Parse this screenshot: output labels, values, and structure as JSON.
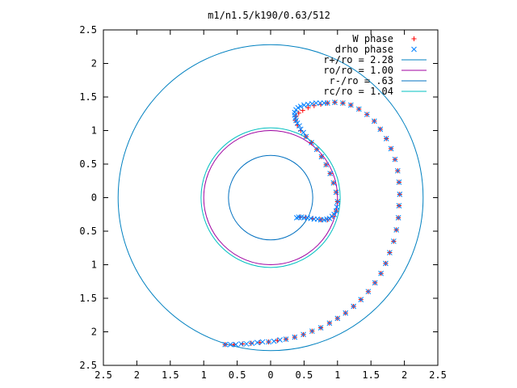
{
  "chart_data": {
    "type": "scatter",
    "title": "m1/n1.5/k190/0.63/512",
    "xlabel": "",
    "ylabel": "",
    "xlim": [
      -2.5,
      2.5
    ],
    "ylim": [
      -2.5,
      2.5
    ],
    "x_ticks": [
      -2.5,
      -2,
      -1.5,
      -1,
      -0.5,
      0,
      0.5,
      1,
      1.5,
      2,
      2.5
    ],
    "y_ticks": [
      -2.5,
      -2,
      -1.5,
      -1,
      -0.5,
      0,
      0.5,
      1,
      1.5,
      2,
      2.5
    ],
    "x_tick_labels": [
      "2.5",
      "2",
      "1.5",
      "1",
      "0.5",
      "0",
      "0.5",
      "1",
      "1.5",
      "2",
      "2.5"
    ],
    "y_tick_labels": [
      "2.5",
      "2",
      "1.5",
      "1",
      "0.5",
      "0",
      "0.5",
      "1",
      "1.5",
      "2",
      "2.5"
    ],
    "grid": false,
    "legend_position": "top-right",
    "series": [
      {
        "name": "W phase",
        "kind": "points",
        "marker": "plus",
        "color": "#ff0000",
        "points": [
          [
            -0.68,
            -2.19
          ],
          [
            -0.55,
            -2.19
          ],
          [
            -0.42,
            -2.18
          ],
          [
            -0.29,
            -2.17
          ],
          [
            -0.16,
            -2.16
          ],
          [
            -0.03,
            -2.15
          ],
          [
            0.1,
            -2.13
          ],
          [
            0.23,
            -2.11
          ],
          [
            0.36,
            -2.08
          ],
          [
            0.49,
            -2.04
          ],
          [
            0.62,
            -1.99
          ],
          [
            0.75,
            -1.94
          ],
          [
            0.88,
            -1.87
          ],
          [
            1.0,
            -1.8
          ],
          [
            1.12,
            -1.72
          ],
          [
            1.24,
            -1.62
          ],
          [
            1.35,
            -1.52
          ],
          [
            1.46,
            -1.4
          ],
          [
            1.56,
            -1.27
          ],
          [
            1.65,
            -1.13
          ],
          [
            1.72,
            -0.98
          ],
          [
            1.78,
            -0.82
          ],
          [
            1.84,
            -0.65
          ],
          [
            1.88,
            -0.48
          ],
          [
            1.91,
            -0.3
          ],
          [
            1.92,
            -0.12
          ],
          [
            1.93,
            0.05
          ],
          [
            1.92,
            0.23
          ],
          [
            1.9,
            0.4
          ],
          [
            1.86,
            0.57
          ],
          [
            1.8,
            0.73
          ],
          [
            1.73,
            0.88
          ],
          [
            1.64,
            1.02
          ],
          [
            1.55,
            1.14
          ],
          [
            1.44,
            1.24
          ],
          [
            1.32,
            1.32
          ],
          [
            1.2,
            1.38
          ],
          [
            1.08,
            1.41
          ],
          [
            0.96,
            1.42
          ],
          [
            0.85,
            1.41
          ],
          [
            0.75,
            1.39
          ],
          [
            0.65,
            1.37
          ],
          [
            0.56,
            1.34
          ],
          [
            0.48,
            1.3
          ],
          [
            0.42,
            1.26
          ],
          [
            0.38,
            1.21
          ],
          [
            0.37,
            1.15
          ],
          [
            0.4,
            1.08
          ],
          [
            0.45,
            1.0
          ],
          [
            0.53,
            0.91
          ],
          [
            0.61,
            0.82
          ],
          [
            0.69,
            0.72
          ],
          [
            0.76,
            0.61
          ],
          [
            0.83,
            0.49
          ],
          [
            0.89,
            0.36
          ],
          [
            0.94,
            0.22
          ],
          [
            0.98,
            0.08
          ],
          [
            1.0,
            -0.06
          ],
          [
            0.98,
            -0.2
          ],
          [
            0.93,
            -0.28
          ],
          [
            0.85,
            -0.33
          ],
          [
            0.75,
            -0.33
          ],
          [
            0.63,
            -0.31
          ],
          [
            0.52,
            -0.29
          ],
          [
            0.44,
            -0.29
          ]
        ]
      },
      {
        "name": "drho phase",
        "kind": "points",
        "marker": "cross",
        "color": "#0080ff",
        "points": [
          [
            -0.68,
            -2.19
          ],
          [
            -0.6,
            -2.19
          ],
          [
            -0.52,
            -2.19
          ],
          [
            -0.44,
            -2.18
          ],
          [
            -0.36,
            -2.18
          ],
          [
            -0.28,
            -2.17
          ],
          [
            -0.2,
            -2.16
          ],
          [
            -0.12,
            -2.15
          ],
          [
            -0.03,
            -2.15
          ],
          [
            0.05,
            -2.14
          ],
          [
            0.14,
            -2.12
          ],
          [
            0.23,
            -2.11
          ],
          [
            0.36,
            -2.08
          ],
          [
            0.49,
            -2.04
          ],
          [
            0.62,
            -1.99
          ],
          [
            0.75,
            -1.94
          ],
          [
            0.88,
            -1.87
          ],
          [
            1.0,
            -1.8
          ],
          [
            1.12,
            -1.72
          ],
          [
            1.24,
            -1.62
          ],
          [
            1.35,
            -1.52
          ],
          [
            1.46,
            -1.4
          ],
          [
            1.56,
            -1.27
          ],
          [
            1.65,
            -1.13
          ],
          [
            1.72,
            -0.98
          ],
          [
            1.78,
            -0.82
          ],
          [
            1.84,
            -0.65
          ],
          [
            1.88,
            -0.48
          ],
          [
            1.91,
            -0.3
          ],
          [
            1.92,
            -0.12
          ],
          [
            1.93,
            0.05
          ],
          [
            1.92,
            0.23
          ],
          [
            1.9,
            0.4
          ],
          [
            1.86,
            0.57
          ],
          [
            1.8,
            0.73
          ],
          [
            1.73,
            0.88
          ],
          [
            1.64,
            1.02
          ],
          [
            1.55,
            1.14
          ],
          [
            1.44,
            1.24
          ],
          [
            1.32,
            1.32
          ],
          [
            1.2,
            1.38
          ],
          [
            1.08,
            1.41
          ],
          [
            0.96,
            1.42
          ],
          [
            0.85,
            1.41
          ],
          [
            0.8,
            1.41
          ],
          [
            0.74,
            1.41
          ],
          [
            0.68,
            1.41
          ],
          [
            0.62,
            1.4
          ],
          [
            0.56,
            1.39
          ],
          [
            0.5,
            1.38
          ],
          [
            0.45,
            1.36
          ],
          [
            0.41,
            1.34
          ],
          [
            0.38,
            1.31
          ],
          [
            0.36,
            1.27
          ],
          [
            0.36,
            1.23
          ],
          [
            0.37,
            1.19
          ],
          [
            0.38,
            1.15
          ],
          [
            0.4,
            1.11
          ],
          [
            0.43,
            1.07
          ],
          [
            0.45,
            1.02
          ],
          [
            0.49,
            0.97
          ],
          [
            0.53,
            0.91
          ],
          [
            0.61,
            0.82
          ],
          [
            0.69,
            0.72
          ],
          [
            0.76,
            0.61
          ],
          [
            0.83,
            0.49
          ],
          [
            0.89,
            0.36
          ],
          [
            0.94,
            0.22
          ],
          [
            0.98,
            0.08
          ],
          [
            1.0,
            -0.06
          ],
          [
            0.99,
            -0.14
          ],
          [
            0.98,
            -0.2
          ],
          [
            0.95,
            -0.25
          ],
          [
            0.92,
            -0.28
          ],
          [
            0.88,
            -0.31
          ],
          [
            0.84,
            -0.32
          ],
          [
            0.8,
            -0.33
          ],
          [
            0.75,
            -0.33
          ],
          [
            0.7,
            -0.32
          ],
          [
            0.65,
            -0.32
          ],
          [
            0.6,
            -0.31
          ],
          [
            0.55,
            -0.3
          ],
          [
            0.5,
            -0.3
          ],
          [
            0.46,
            -0.29
          ],
          [
            0.42,
            -0.29
          ],
          [
            0.39,
            -0.3
          ]
        ]
      },
      {
        "name": "r+/ro = 2.28",
        "kind": "circle",
        "radius": 2.28,
        "color": "#0080c0"
      },
      {
        "name": "ro/ro = 1.00",
        "kind": "circle",
        "radius": 1.0,
        "color": "#a000a0"
      },
      {
        "name": "r-/ro = .63",
        "kind": "circle",
        "radius": 0.63,
        "color": "#0070c0"
      },
      {
        "name": "rc/ro = 1.04",
        "kind": "circle",
        "radius": 1.04,
        "color": "#00c0c0"
      }
    ]
  }
}
